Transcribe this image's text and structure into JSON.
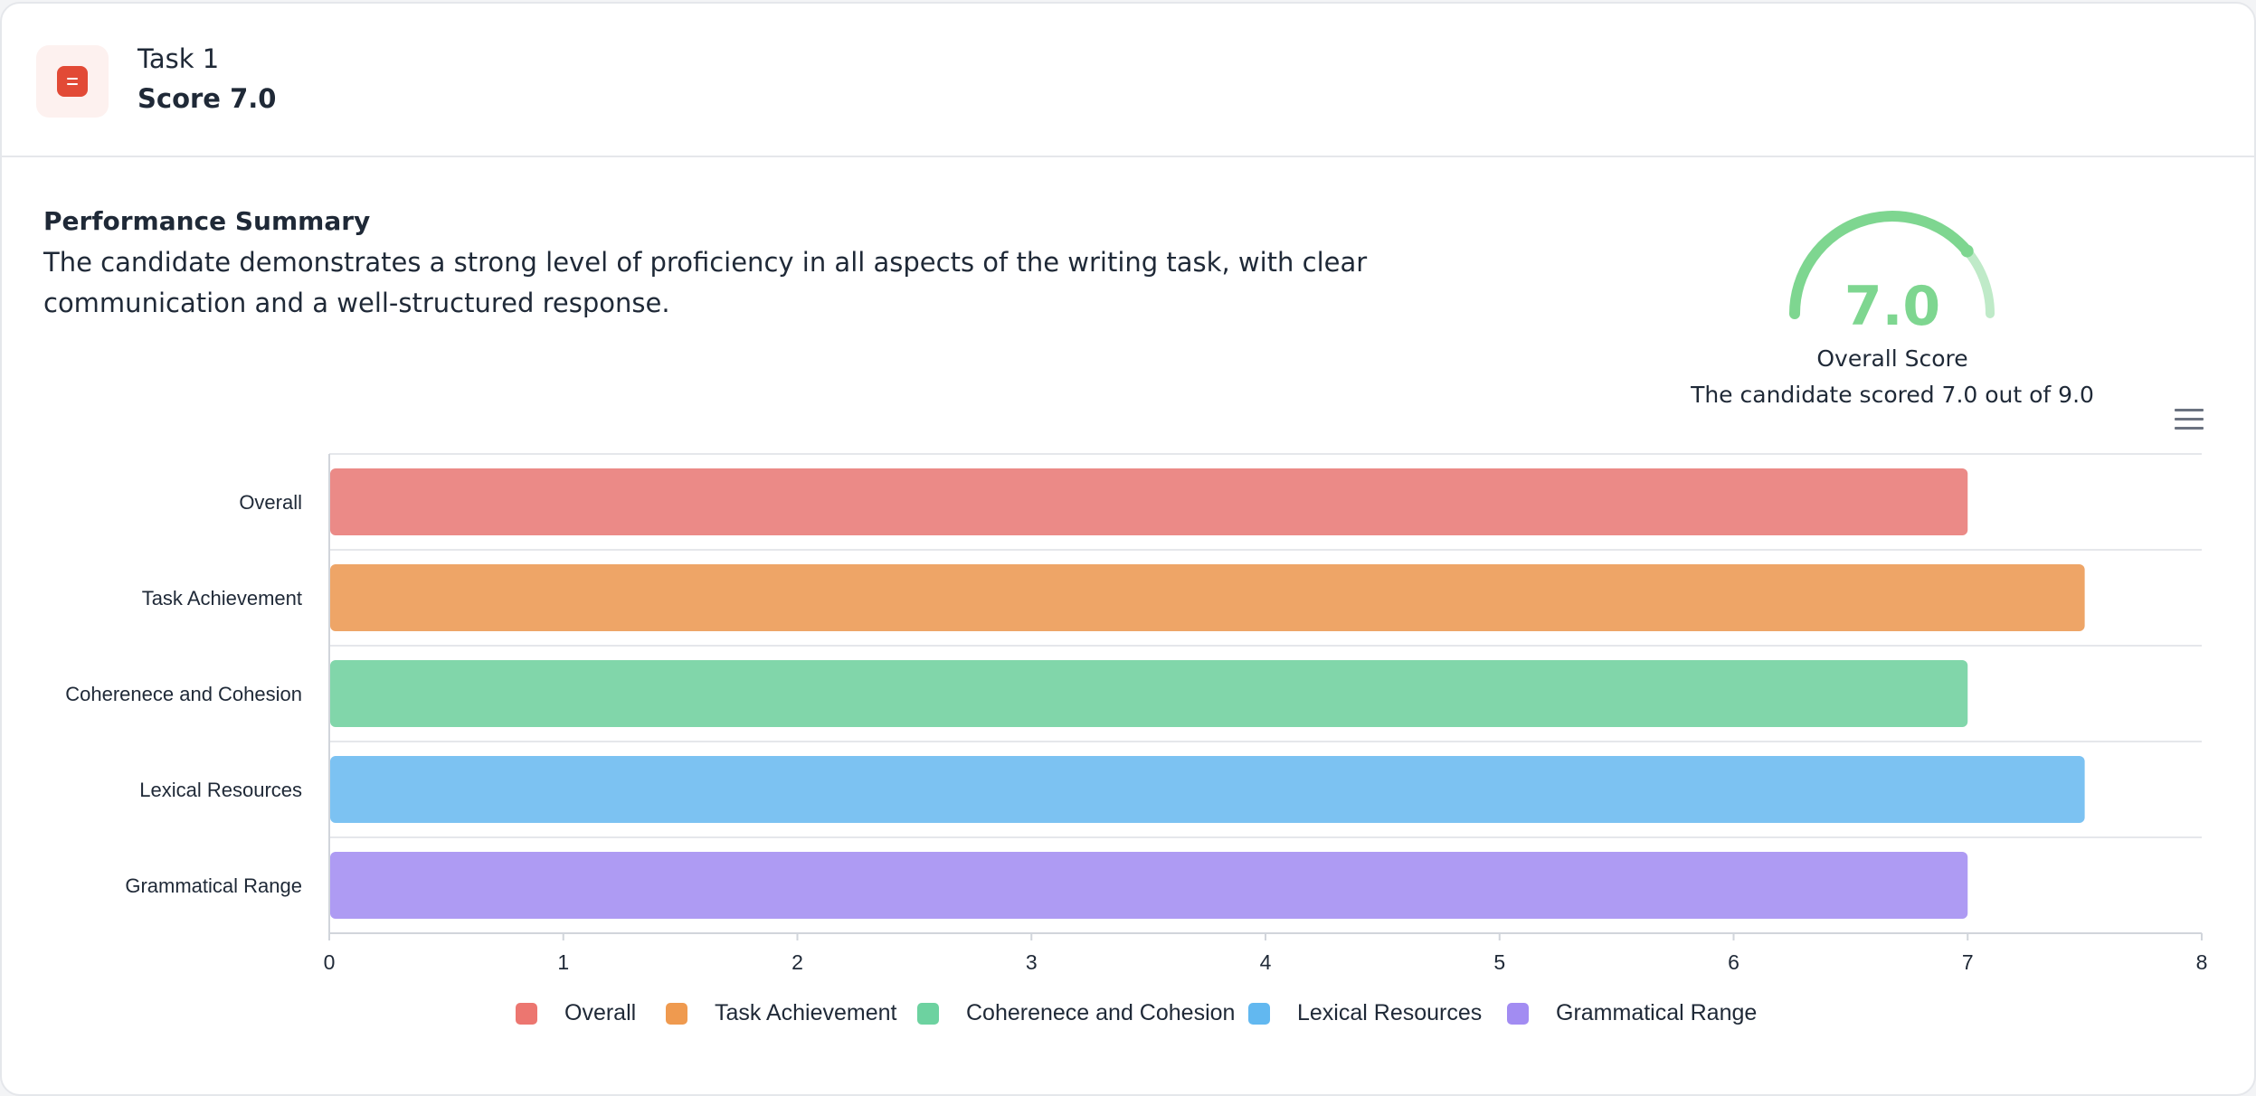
{
  "task": {
    "title": "Task 1",
    "score_label": "Score 7.0",
    "icon": "document-icon",
    "icon_color": "#e24a36"
  },
  "summary": {
    "title": "Performance Summary",
    "text": "The candidate demonstrates a strong level of proficiency in all aspects of the writing task, with clear communication and a well-structured response."
  },
  "gauge": {
    "value": "7.0",
    "label": "Overall Score",
    "caption": "The candidate scored 7.0 out of 9.0",
    "score": 7.0,
    "max": 9.0,
    "color": "#7ed690"
  },
  "toolbar": {
    "menu_icon": "hamburger-menu-icon"
  },
  "chart_data": {
    "type": "bar",
    "orientation": "horizontal",
    "categories": [
      "Overall",
      "Task Achievement",
      "Coherenece and Cohesion",
      "Lexical Resources",
      "Grammatical Range"
    ],
    "values": [
      7,
      7.5,
      7,
      7.5,
      7
    ],
    "colors": [
      "#eb8a87",
      "#eea567",
      "#81d6aa",
      "#7cc2f2",
      "#ae9bf3"
    ],
    "legend_colors": [
      "#ec7670",
      "#ef9a4f",
      "#6dd2a0",
      "#62b8f0",
      "#a28cf2"
    ],
    "xlim": [
      0,
      8
    ],
    "xticks": [
      "0",
      "1",
      "2",
      "3",
      "4",
      "5",
      "6",
      "7",
      "8"
    ],
    "grid": true,
    "legend": {
      "placement": "bottom-center",
      "entries": [
        "Overall",
        "Task Achievement",
        "Coherenece and Cohesion",
        "Lexical Resources",
        "Grammatical Range"
      ]
    }
  }
}
